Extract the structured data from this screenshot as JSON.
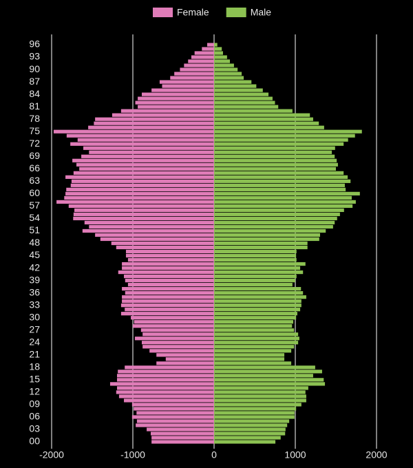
{
  "chart_data": {
    "type": "bar",
    "orientation": "horizontal",
    "legend": "top",
    "grid": true,
    "xlim": [
      -2200,
      2200
    ],
    "xticks": [
      -2000,
      -1000,
      0,
      1000,
      2000
    ],
    "categories": [
      "00",
      null,
      null,
      "03",
      null,
      null,
      "06",
      null,
      null,
      "09",
      null,
      null,
      "12",
      null,
      null,
      "15",
      null,
      null,
      "18",
      null,
      null,
      "21",
      null,
      null,
      "24",
      null,
      null,
      "27",
      null,
      null,
      "30",
      null,
      null,
      "33",
      null,
      null,
      "36",
      null,
      null,
      "39",
      null,
      null,
      "42",
      null,
      null,
      "45",
      null,
      null,
      "48",
      null,
      null,
      "51",
      null,
      null,
      "54",
      null,
      null,
      "57",
      null,
      null,
      "60",
      null,
      null,
      "63",
      null,
      null,
      "66",
      null,
      null,
      "69",
      null,
      null,
      "72",
      null,
      null,
      "75",
      null,
      null,
      "78",
      null,
      null,
      "81",
      null,
      null,
      "84",
      null,
      null,
      "87",
      null,
      null,
      "90",
      null,
      null,
      "93",
      null,
      null,
      "96"
    ],
    "series": [
      {
        "name": "Female",
        "color": "#e07cb8",
        "values": [
          -770,
          -770,
          -780,
          -830,
          -965,
          -950,
          -1010,
          -955,
          -990,
          -1010,
          -1110,
          -1170,
          -1205,
          -1195,
          -1280,
          -1195,
          -1195,
          -1185,
          -1100,
          -710,
          -595,
          -710,
          -795,
          -880,
          -890,
          -975,
          -880,
          -900,
          -1000,
          -985,
          -1025,
          -1145,
          -1100,
          -1145,
          -1135,
          -1135,
          -1095,
          -1135,
          -1060,
          -1095,
          -1110,
          -1180,
          -1135,
          -1135,
          -1060,
          -1085,
          -1085,
          -1205,
          -1265,
          -1400,
          -1465,
          -1620,
          -1540,
          -1595,
          -1735,
          -1730,
          -1720,
          -1790,
          -1940,
          -1845,
          -1830,
          -1820,
          -1765,
          -1755,
          -1830,
          -1730,
          -1660,
          -1695,
          -1745,
          -1635,
          -1540,
          -1610,
          -1770,
          -1680,
          -1815,
          -1975,
          -1550,
          -1480,
          -1465,
          -1255,
          -1145,
          -940,
          -970,
          -940,
          -890,
          -770,
          -640,
          -670,
          -540,
          -490,
          -420,
          -370,
          -320,
          -280,
          -240,
          -150,
          -85
        ]
      },
      {
        "name": "Male",
        "color": "#8cc152",
        "values": [
          755,
          820,
          875,
          880,
          900,
          925,
          990,
          990,
          1010,
          1075,
          1135,
          1135,
          1125,
          1160,
          1365,
          1350,
          1220,
          1330,
          1245,
          950,
          865,
          865,
          950,
          985,
          1035,
          1050,
          1035,
          985,
          960,
          975,
          1010,
          1025,
          1060,
          1075,
          1075,
          1135,
          1095,
          1070,
          965,
          1000,
          1015,
          1095,
          1060,
          1125,
          1015,
          1010,
          1015,
          1150,
          1150,
          1295,
          1305,
          1375,
          1465,
          1485,
          1515,
          1550,
          1600,
          1705,
          1745,
          1695,
          1795,
          1620,
          1610,
          1680,
          1645,
          1595,
          1500,
          1525,
          1510,
          1485,
          1450,
          1490,
          1595,
          1650,
          1735,
          1820,
          1355,
          1290,
          1220,
          1180,
          965,
          790,
          750,
          720,
          670,
          600,
          520,
          460,
          365,
          340,
          290,
          245,
          195,
          160,
          110,
          95,
          40
        ]
      }
    ]
  }
}
